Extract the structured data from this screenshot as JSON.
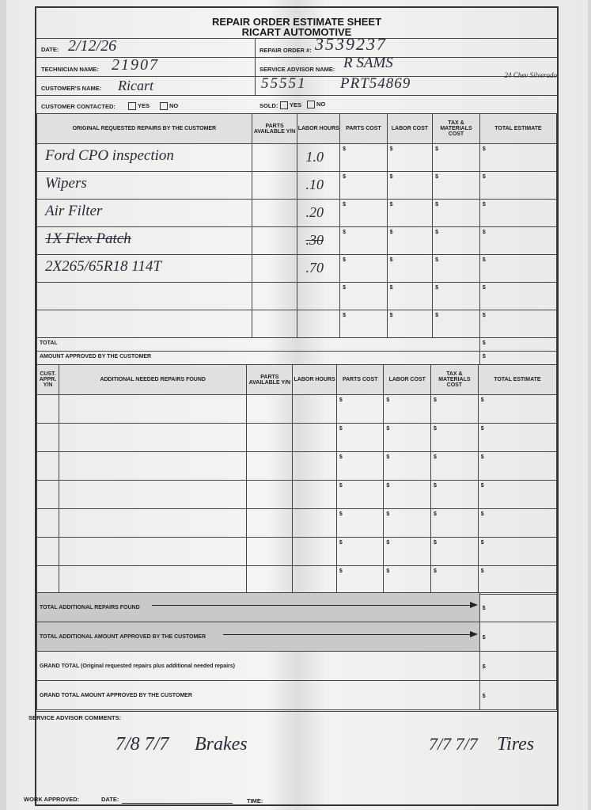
{
  "header": {
    "title": "REPAIR ORDER ESTIMATE SHEET",
    "company": "RICART AUTOMOTIVE"
  },
  "fields": {
    "date_label": "DATE:",
    "date": "2/12/26",
    "repair_order_label": "REPAIR ORDER #:",
    "repair_order": "3539237",
    "technician_label": "TECHNICIAN NAME:",
    "technician": "21907",
    "advisor_label": "SERVICE ADVISOR NAME:",
    "advisor": "R SAMS",
    "customer_label": "CUSTOMER'S NAME:",
    "customer": "Ricart",
    "customer_extra": "55551",
    "vin_note": "PRT54869",
    "vehicle_note": "24 Chev Silverado",
    "contacted_label": "CUSTOMER CONTACTED:",
    "yes": "YES",
    "no": "NO",
    "sold_label": "SOLD:"
  },
  "original": {
    "headers": [
      "ORIGINAL REQUESTED REPAIRS BY THE CUSTOMER",
      "PARTS AVAILABLE Y/N",
      "LABOR HOURS",
      "PARTS COST",
      "LABOR COST",
      "TAX & MATERIALS COST",
      "TOTAL ESTIMATE"
    ],
    "rows": [
      {
        "desc": "Ford CPO inspection",
        "hours": "1.0",
        "struck": false
      },
      {
        "desc": "Wipers",
        "hours": ".10",
        "struck": false
      },
      {
        "desc": "Air Filter",
        "hours": ".20",
        "struck": false
      },
      {
        "desc": "1X Flex Patch",
        "hours": ".30",
        "struck": true
      },
      {
        "desc": "2X265/65R18 114T",
        "hours": ".70",
        "struck": false
      },
      {
        "desc": "",
        "hours": "",
        "struck": false
      },
      {
        "desc": "",
        "hours": "",
        "struck": false
      }
    ],
    "currency": "$",
    "total_label": "TOTAL",
    "approved_label": "AMOUNT APPROVED BY THE CUSTOMER"
  },
  "additional": {
    "headers": [
      "CUST. APPR. Y/N",
      "ADDITIONAL NEEDED REPAIRS FOUND",
      "PARTS AVAILABLE Y/N",
      "LABOR HOURS",
      "PARTS COST",
      "LABOR COST",
      "TAX & MATERIALS COST",
      "TOTAL ESTIMATE"
    ],
    "row_count": 7
  },
  "totals": {
    "additional_found": "TOTAL ADDITIONAL REPAIRS FOUND",
    "additional_approved": "TOTAL ADDITIONAL AMOUNT APPROVED BY THE CUSTOMER",
    "grand_total": "GRAND TOTAL (Original requested repairs plus additional needed repairs)",
    "grand_approved": "GRAND TOTAL AMOUNT APPROVED BY THE CUSTOMER"
  },
  "comments": {
    "label": "SERVICE ADVISOR COMMENTS:",
    "note1_code": "7/8 7/7",
    "note1_text": "Brakes",
    "note2_code": "7/7 7/7",
    "note2_text": "Tires"
  },
  "footer": {
    "work_approved": "WORK APPROVED:",
    "date": "DATE:",
    "time": "TIME:"
  }
}
